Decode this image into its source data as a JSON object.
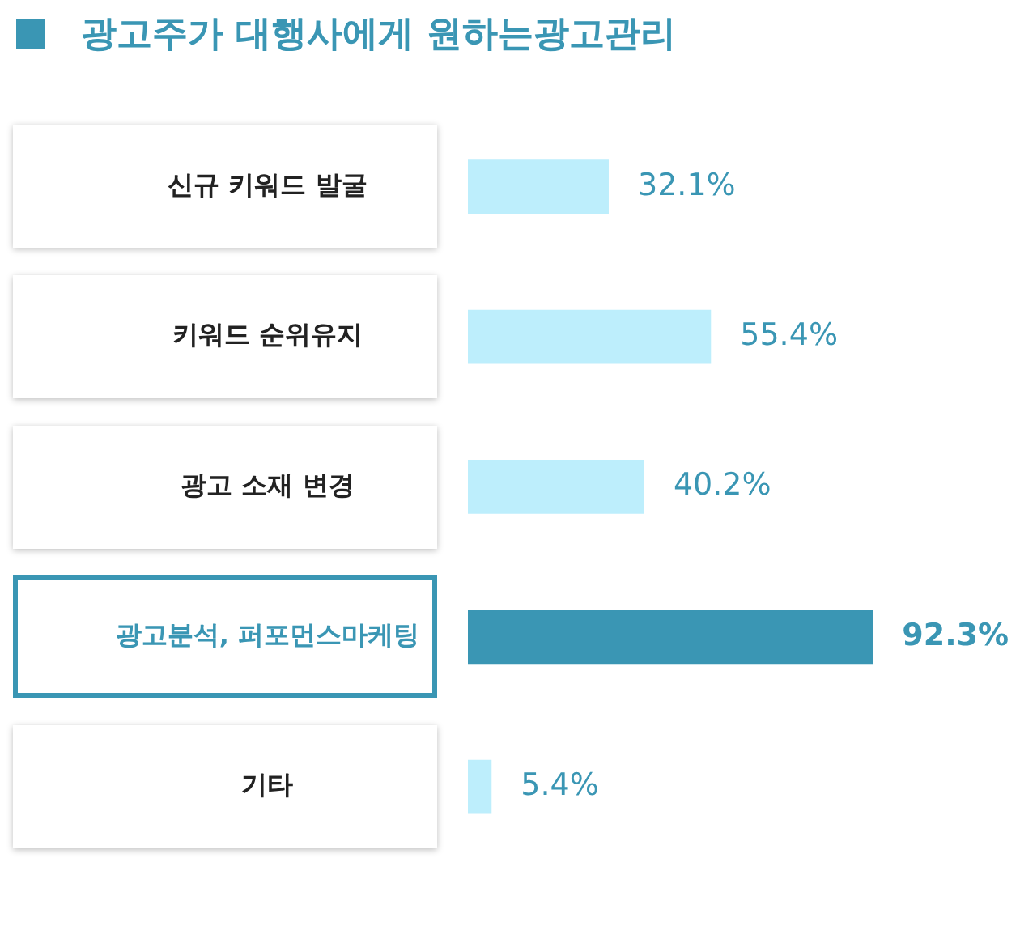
{
  "chart_data": {
    "type": "bar",
    "orientation": "horizontal",
    "title": "광고주가 대행사에게 원하는광고관리",
    "categories": [
      "신규 키워드 발굴",
      "키워드 순위유지",
      "광고 소재 변경",
      "광고분석, 퍼포먼스마케팅",
      "기타"
    ],
    "values": [
      32.1,
      55.4,
      40.2,
      92.3,
      5.4
    ],
    "colors": [
      "#bdeefc",
      "#bdeefc",
      "#bdeefc",
      "#3a96b4",
      "#bdeefc"
    ],
    "value_labels": [
      "32.1%",
      "55.4%",
      "40.2%",
      "92.3%",
      "5.4%"
    ],
    "grid": false,
    "legend": false
  }
}
